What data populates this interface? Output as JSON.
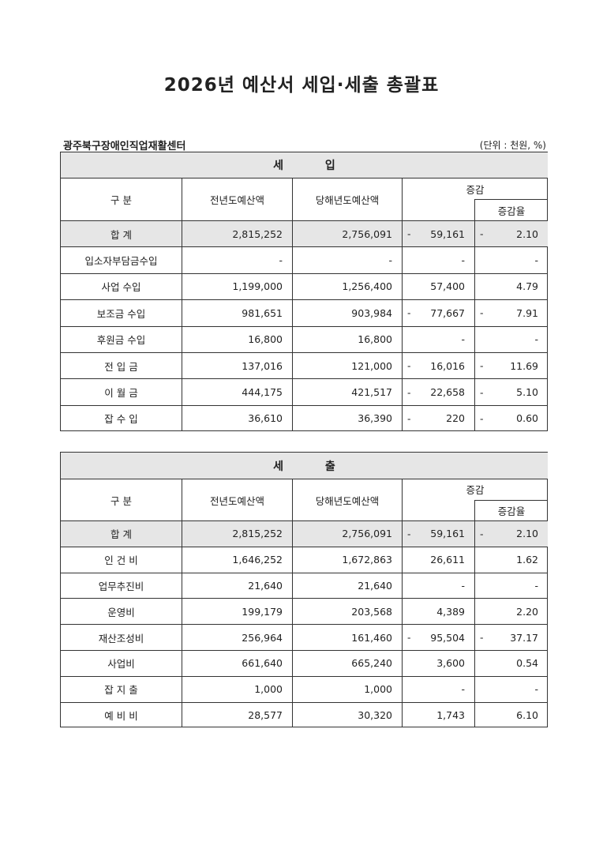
{
  "title": "2026년 예산서 세입·세출 총괄표",
  "organization": "광주북구장애인직업재활센터",
  "unit": "(단위 : 천원, %)",
  "headers": {
    "category": "구 분",
    "prev": "전년도예산액",
    "curr": "당해년도예산액",
    "change": "증감",
    "rate": "증감율"
  },
  "revenue": {
    "section": "세 입",
    "rows": [
      {
        "name": "합 계",
        "prev": "2,815,252",
        "curr": "2,756,091",
        "change_sign": "-",
        "change": "59,161",
        "rate_sign": "-",
        "rate": "2.10",
        "total": true
      },
      {
        "name": "입소자부담금수입",
        "prev": "-",
        "curr": "-",
        "change_sign": "",
        "change": "-",
        "rate_sign": "",
        "rate": "-"
      },
      {
        "name": "사업 수입",
        "prev": "1,199,000",
        "curr": "1,256,400",
        "change_sign": "",
        "change": "57,400",
        "rate_sign": "",
        "rate": "4.79"
      },
      {
        "name": "보조금 수입",
        "prev": "981,651",
        "curr": "903,984",
        "change_sign": "-",
        "change": "77,667",
        "rate_sign": "-",
        "rate": "7.91"
      },
      {
        "name": "후원금 수입",
        "prev": "16,800",
        "curr": "16,800",
        "change_sign": "",
        "change": "-",
        "rate_sign": "",
        "rate": "-"
      },
      {
        "name": "전 입 금",
        "prev": "137,016",
        "curr": "121,000",
        "change_sign": "-",
        "change": "16,016",
        "rate_sign": "-",
        "rate": "11.69"
      },
      {
        "name": "이 월 금",
        "prev": "444,175",
        "curr": "421,517",
        "change_sign": "-",
        "change": "22,658",
        "rate_sign": "-",
        "rate": "5.10"
      },
      {
        "name": "잡 수 입",
        "prev": "36,610",
        "curr": "36,390",
        "change_sign": "-",
        "change": "220",
        "rate_sign": "-",
        "rate": "0.60"
      }
    ]
  },
  "expenditure": {
    "section": "세 출",
    "rows": [
      {
        "name": "합 계",
        "prev": "2,815,252",
        "curr": "2,756,091",
        "change_sign": "-",
        "change": "59,161",
        "rate_sign": "-",
        "rate": "2.10",
        "total": true
      },
      {
        "name": "인 건 비",
        "prev": "1,646,252",
        "curr": "1,672,863",
        "change_sign": "",
        "change": "26,611",
        "rate_sign": "",
        "rate": "1.62"
      },
      {
        "name": "업무추진비",
        "prev": "21,640",
        "curr": "21,640",
        "change_sign": "",
        "change": "-",
        "rate_sign": "",
        "rate": "-"
      },
      {
        "name": "운영비",
        "prev": "199,179",
        "curr": "203,568",
        "change_sign": "",
        "change": "4,389",
        "rate_sign": "",
        "rate": "2.20"
      },
      {
        "name": "재산조성비",
        "prev": "256,964",
        "curr": "161,460",
        "change_sign": "-",
        "change": "95,504",
        "rate_sign": "-",
        "rate": "37.17"
      },
      {
        "name": "사업비",
        "prev": "661,640",
        "curr": "665,240",
        "change_sign": "",
        "change": "3,600",
        "rate_sign": "",
        "rate": "0.54"
      },
      {
        "name": "잡 지 출",
        "prev": "1,000",
        "curr": "1,000",
        "change_sign": "",
        "change": "-",
        "rate_sign": "",
        "rate": "-"
      },
      {
        "name": "예 비 비",
        "prev": "28,577",
        "curr": "30,320",
        "change_sign": "",
        "change": "1,743",
        "rate_sign": "",
        "rate": "6.10"
      }
    ]
  }
}
